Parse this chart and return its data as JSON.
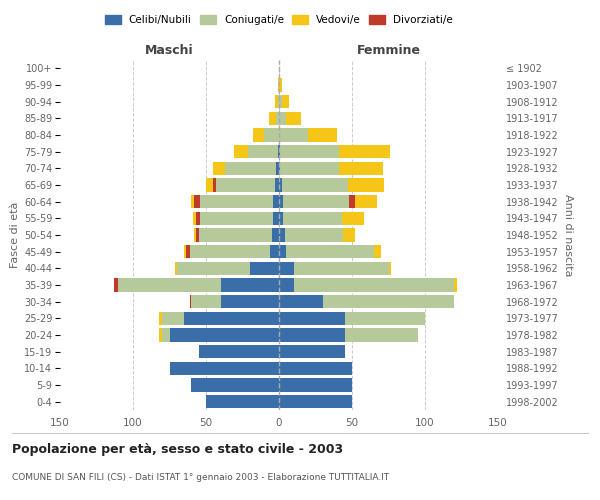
{
  "age_groups": [
    "0-4",
    "5-9",
    "10-14",
    "15-19",
    "20-24",
    "25-29",
    "30-34",
    "35-39",
    "40-44",
    "45-49",
    "50-54",
    "55-59",
    "60-64",
    "65-69",
    "70-74",
    "75-79",
    "80-84",
    "85-89",
    "90-94",
    "95-99",
    "100+"
  ],
  "birth_years": [
    "1998-2002",
    "1993-1997",
    "1988-1992",
    "1983-1987",
    "1978-1982",
    "1973-1977",
    "1968-1972",
    "1963-1967",
    "1958-1962",
    "1953-1957",
    "1948-1952",
    "1943-1947",
    "1938-1942",
    "1933-1937",
    "1928-1932",
    "1923-1927",
    "1918-1922",
    "1913-1917",
    "1908-1912",
    "1903-1907",
    "≤ 1902"
  ],
  "colors": {
    "celibi": "#3a6ea8",
    "coniugati": "#b5c99a",
    "vedovi": "#f5c518",
    "divorziati": "#c0392b"
  },
  "maschi": {
    "celibi": [
      50,
      60,
      75,
      55,
      75,
      65,
      40,
      40,
      20,
      6,
      5,
      4,
      4,
      3,
      2,
      1,
      0,
      0,
      0,
      0,
      0
    ],
    "coniugati": [
      0,
      0,
      0,
      0,
      5,
      15,
      20,
      70,
      50,
      55,
      50,
      50,
      50,
      40,
      35,
      20,
      10,
      2,
      1,
      0,
      0
    ],
    "vedovi": [
      0,
      0,
      0,
      0,
      2,
      2,
      0,
      0,
      1,
      1,
      1,
      2,
      2,
      5,
      8,
      10,
      8,
      5,
      2,
      1,
      0
    ],
    "divorziati": [
      0,
      0,
      0,
      0,
      0,
      0,
      1,
      3,
      0,
      3,
      2,
      3,
      4,
      2,
      0,
      0,
      0,
      0,
      0,
      0,
      0
    ]
  },
  "femmine": {
    "celibi": [
      50,
      50,
      50,
      45,
      45,
      45,
      30,
      10,
      10,
      5,
      4,
      3,
      3,
      2,
      1,
      1,
      0,
      0,
      0,
      0,
      0
    ],
    "coniugati": [
      0,
      0,
      0,
      0,
      50,
      55,
      90,
      110,
      65,
      60,
      40,
      40,
      45,
      45,
      40,
      40,
      20,
      5,
      2,
      1,
      0
    ],
    "vedovi": [
      0,
      0,
      0,
      0,
      0,
      0,
      0,
      2,
      2,
      5,
      8,
      15,
      15,
      25,
      30,
      35,
      20,
      10,
      5,
      1,
      0
    ],
    "divorziati": [
      0,
      0,
      0,
      0,
      0,
      0,
      0,
      0,
      0,
      0,
      0,
      0,
      4,
      0,
      0,
      0,
      0,
      0,
      0,
      0,
      0
    ]
  },
  "xlim": 150,
  "title": "Popolazione per età, sesso e stato civile - 2003",
  "subtitle": "COMUNE DI SAN FILI (CS) - Dati ISTAT 1° gennaio 2003 - Elaborazione TUTTITALIA.IT",
  "ylabel_left": "Fasce di età",
  "ylabel_right": "Anni di nascita",
  "xlabel_left": "Maschi",
  "xlabel_right": "Femmine",
  "legend_labels": [
    "Celibi/Nubili",
    "Coniugati/e",
    "Vedovi/e",
    "Divorziati/e"
  ],
  "background_color": "#ffffff",
  "grid_color": "#cccccc"
}
